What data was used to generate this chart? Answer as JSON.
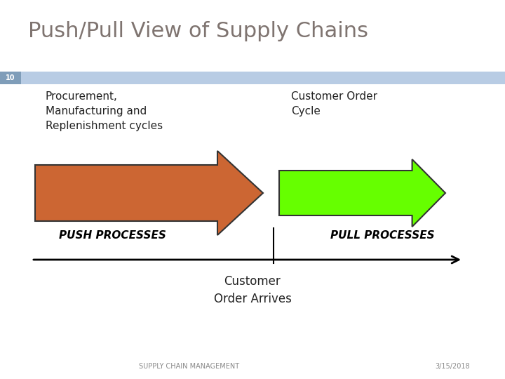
{
  "title": "Push/Pull View of Supply Chains",
  "title_color": "#7f7470",
  "title_fontsize": 22,
  "slide_number": "10",
  "slide_num_bg": "#7f9db9",
  "slide_num_color": "white",
  "header_bar_color": "#b8cce4",
  "push_label": "Procurement,\nManufacturing and\nReplenishment cycles",
  "pull_label": "Customer Order\nCycle",
  "push_arrow_color": "#cc6633",
  "pull_arrow_color": "#66ff00",
  "push_arrow_edge": "#333333",
  "pull_arrow_edge": "#333333",
  "push_text": "PUSH PROCESSES",
  "pull_text": "PULL PROCESSES",
  "process_text_color": "#000000",
  "timeline_color": "#000000",
  "divider_color": "#000000",
  "customer_order_text": "Customer\nOrder Arrives",
  "footer_left": "SUPPLY CHAIN MANAGEMENT",
  "footer_right": "3/15/2018",
  "footer_color": "#888888",
  "bg_color": "#ffffff"
}
